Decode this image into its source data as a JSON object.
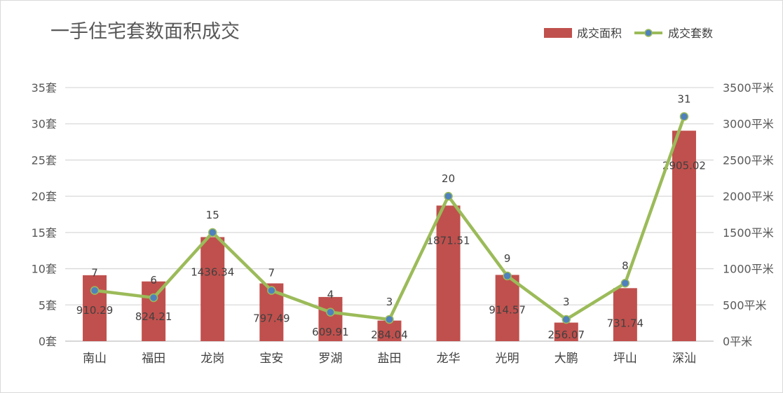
{
  "chart_data": {
    "type": "bar+line",
    "title": "一手住宅套数面积成交",
    "categories": [
      "南山",
      "福田",
      "龙岗",
      "宝安",
      "罗湖",
      "盐田",
      "龙华",
      "光明",
      "大鹏",
      "坪山",
      "深汕"
    ],
    "series": [
      {
        "name": "成交面积",
        "type": "bar",
        "axis": "right",
        "color": "#c0504d",
        "values": [
          910.29,
          824.21,
          1436.34,
          797.49,
          609.91,
          284.04,
          1871.51,
          914.57,
          256.07,
          731.74,
          2905.02
        ],
        "labels": [
          "910.29",
          "824.21",
          "1436.34",
          "797.49",
          "609.91",
          "284.04",
          "1871.51",
          "914.57",
          "256.07",
          "731.74",
          "2905.02"
        ]
      },
      {
        "name": "成交套数",
        "type": "line",
        "axis": "left",
        "color": "#9bbb59",
        "marker_color": "#4f81bd",
        "values": [
          7,
          6,
          15,
          7,
          4,
          3,
          20,
          9,
          3,
          8,
          31
        ],
        "labels": [
          "7",
          "6",
          "15",
          "7",
          "4",
          "3",
          "20",
          "9",
          "3",
          "8",
          "31"
        ]
      }
    ],
    "y_left": {
      "min": 0,
      "max": 35,
      "ticks": [
        "0套",
        "5套",
        "10套",
        "15套",
        "20套",
        "25套",
        "30套",
        "35套"
      ]
    },
    "y_right": {
      "min": 0,
      "max": 3500,
      "ticks": [
        "0平米",
        "500平米",
        "1000平米",
        "1500平米",
        "2000平米",
        "2500平米",
        "3000平米",
        "3500平米"
      ]
    },
    "grid": true,
    "legend": "top-right"
  }
}
